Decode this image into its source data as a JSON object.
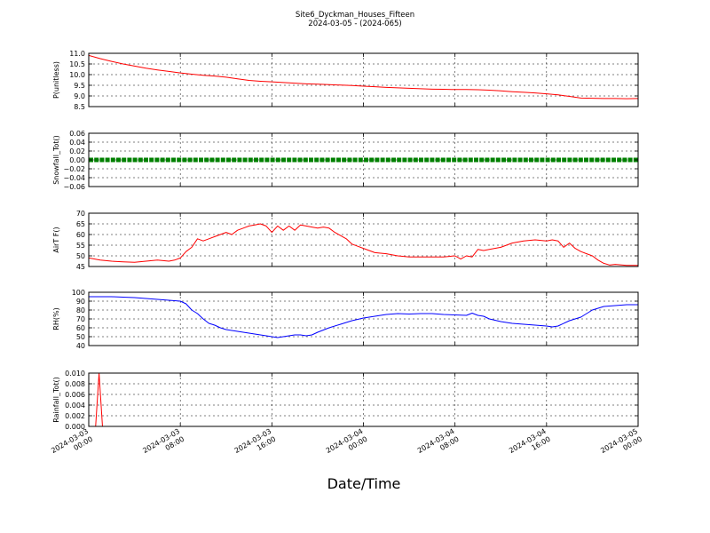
{
  "figure": {
    "title": "Site6_Dyckman_Houses_Fifteen",
    "subtitle": "2024-03-05 - (2024-065)",
    "xlabel": "Date/Time"
  },
  "chart_data": [
    {
      "type": "line",
      "ylabel": "P(unitless)",
      "ylim": [
        8.5,
        11.0
      ],
      "yticks": [
        "8.5",
        "9.0",
        "9.5",
        "10.0",
        "10.5",
        "11.0"
      ],
      "grid": true,
      "series": [
        {
          "color": "#ff0000",
          "x": [
            0,
            1,
            2,
            3,
            4,
            5,
            6,
            7,
            8,
            9,
            10,
            11,
            12,
            13,
            14,
            15,
            16,
            17,
            18,
            19,
            20,
            21,
            22,
            23,
            24,
            25,
            26,
            27,
            28,
            29,
            30,
            31,
            32,
            33,
            34,
            35,
            36,
            37,
            38,
            39,
            40,
            41,
            42,
            43,
            44,
            45,
            46,
            47,
            48
          ],
          "y": [
            10.9,
            10.75,
            10.62,
            10.5,
            10.4,
            10.3,
            10.22,
            10.15,
            10.08,
            10.02,
            9.97,
            9.93,
            9.88,
            9.8,
            9.73,
            9.69,
            9.66,
            9.63,
            9.6,
            9.57,
            9.55,
            9.53,
            9.51,
            9.49,
            9.46,
            9.43,
            9.4,
            9.38,
            9.36,
            9.34,
            9.32,
            9.31,
            9.3,
            9.3,
            9.29,
            9.27,
            9.24,
            9.2,
            9.17,
            9.14,
            9.1,
            9.05,
            8.98,
            8.9,
            8.89,
            8.88,
            8.88,
            8.87,
            8.88
          ]
        }
      ]
    },
    {
      "type": "scatter",
      "ylabel": "Snowfall_Tot()",
      "ylim": [
        -0.06,
        0.06
      ],
      "yticks": [
        "−0.06",
        "−0.04",
        "−0.02",
        "0.00",
        "0.02",
        "0.04",
        "0.06"
      ],
      "grid": true,
      "series": [
        {
          "color": "#008000",
          "x": [
            0,
            48
          ],
          "y": [
            0,
            0
          ]
        }
      ]
    },
    {
      "type": "line",
      "ylabel": "AirT F()",
      "ylim": [
        45,
        70
      ],
      "yticks": [
        "45",
        "50",
        "55",
        "60",
        "65",
        "70"
      ],
      "grid": true,
      "series": [
        {
          "color": "#ff0000",
          "x": [
            0,
            1,
            2,
            3,
            4,
            5,
            6,
            7,
            7.5,
            8,
            8.5,
            9,
            9.5,
            10,
            10.5,
            11,
            11.5,
            12,
            12.5,
            13,
            13.5,
            14,
            14.5,
            15,
            15.5,
            16,
            16.5,
            17,
            17.5,
            18,
            18.5,
            19,
            19.5,
            20,
            20.5,
            21,
            21.5,
            22,
            22.5,
            23,
            23.5,
            24,
            25,
            26,
            27,
            28,
            29,
            30,
            31,
            32,
            32.5,
            33,
            33.5,
            34,
            34.5,
            35,
            36,
            37,
            38,
            39,
            40,
            40.5,
            41,
            41.5,
            42,
            42.5,
            43,
            43.5,
            44,
            44.5,
            45,
            45.5,
            46,
            47,
            48
          ],
          "y": [
            49,
            48,
            47.5,
            47.2,
            47,
            47.5,
            48,
            47.5,
            48,
            49,
            52,
            54,
            58,
            57,
            58,
            59,
            60,
            61,
            60,
            62,
            63,
            64,
            64.5,
            65,
            64,
            61,
            64,
            62,
            64,
            62,
            64.5,
            64,
            63.5,
            63,
            63.5,
            63,
            61,
            59.5,
            58,
            55.5,
            54.5,
            53.5,
            51.5,
            51,
            50,
            49.5,
            49.5,
            49.5,
            49.5,
            50,
            48.5,
            50,
            49.5,
            53,
            52.5,
            53,
            54,
            56,
            57,
            57.5,
            57,
            57.5,
            57,
            54,
            56,
            53.5,
            52,
            51,
            50,
            48,
            46.5,
            45.7,
            46,
            45.5,
            45.5
          ]
        }
      ]
    },
    {
      "type": "line",
      "ylabel": "RH(%)",
      "ylim": [
        40,
        100
      ],
      "yticks": [
        "40",
        "50",
        "60",
        "70",
        "80",
        "90",
        "100"
      ],
      "grid": true,
      "series": [
        {
          "color": "#0000ff",
          "x": [
            0,
            1,
            2,
            3,
            4,
            5,
            6,
            7,
            7.5,
            8,
            8.5,
            9,
            9.5,
            10,
            10.5,
            11,
            11.5,
            12,
            12.5,
            13,
            13.5,
            14,
            14.5,
            15,
            15.5,
            16,
            16.5,
            17,
            17.5,
            18,
            18.5,
            19,
            19.5,
            20,
            21,
            22,
            23,
            24,
            25,
            26,
            27,
            28,
            29,
            30,
            31,
            32,
            33,
            33.5,
            34,
            34.5,
            35,
            36,
            36.5,
            37,
            38,
            39,
            40,
            40.5,
            41,
            42,
            43,
            44,
            45,
            46,
            47,
            48
          ],
          "y": [
            95,
            95,
            95,
            94.5,
            94,
            93,
            92,
            91,
            90.5,
            90,
            87,
            80,
            76,
            70,
            65,
            63,
            60,
            58,
            57,
            56,
            55,
            54,
            53,
            52,
            51,
            50,
            49,
            50,
            51,
            52,
            52,
            51,
            52,
            55,
            60,
            64,
            68,
            71,
            73,
            75,
            76,
            75.5,
            76,
            76,
            75,
            74.5,
            74,
            76.5,
            74,
            73,
            70,
            67,
            66,
            65,
            64,
            63,
            62,
            61,
            62,
            68,
            72,
            80,
            84,
            85,
            86,
            86
          ]
        }
      ]
    },
    {
      "type": "line",
      "ylabel": "Rainfall_Tot()",
      "ylim": [
        0,
        0.01
      ],
      "yticks": [
        "0.000",
        "0.002",
        "0.004",
        "0.006",
        "0.008",
        "0.010"
      ],
      "grid": true,
      "series": [
        {
          "color": "#ff0000",
          "x": [
            0,
            0.6,
            0.9,
            1.2,
            1.5,
            48
          ],
          "y": [
            0,
            0,
            0.01,
            0,
            0,
            0
          ]
        }
      ]
    }
  ],
  "x_axis": {
    "range": [
      0,
      48
    ],
    "ticks": [
      {
        "x": 0,
        "date": "2024-03-03",
        "time": "00:00"
      },
      {
        "x": 8,
        "date": "2024-03-03",
        "time": "08:00"
      },
      {
        "x": 16,
        "date": "2024-03-03",
        "time": "16:00"
      },
      {
        "x": 24,
        "date": "2024-03-04",
        "time": "00:00"
      },
      {
        "x": 32,
        "date": "2024-03-04",
        "time": "08:00"
      },
      {
        "x": 40,
        "date": "2024-03-04",
        "time": "16:00"
      },
      {
        "x": 48,
        "date": "2024-03-05",
        "time": "00:00"
      }
    ]
  }
}
